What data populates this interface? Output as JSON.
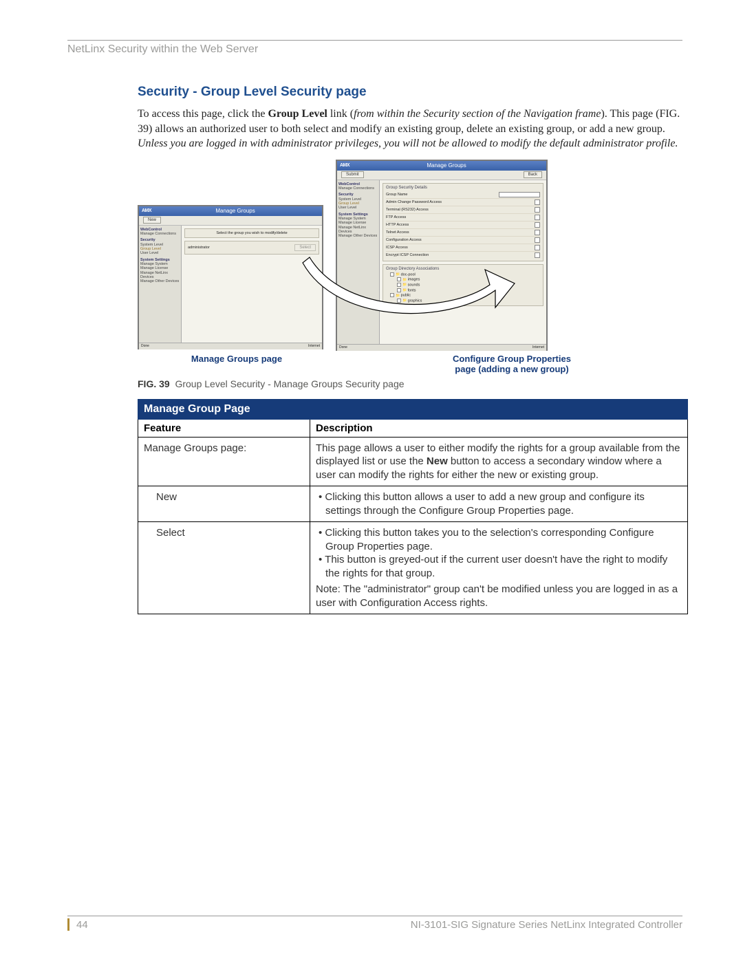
{
  "header": {
    "running": "NetLinx Security within the Web Server"
  },
  "section": {
    "title": "Security - Group Level Security page",
    "para": "To access this page, click the <b>Group Level</b> link (<i>from within the Security section of the Navigation frame</i>). This page (FIG. 39) allows an authorized user to both select and modify an existing group, delete an existing group, or add a new group. <i>Unless you are logged in with administrator privileges, you will not be allowed to modify the default administrator profile.</i>"
  },
  "figure": {
    "left_window_title": "Manage Groups",
    "right_window_title": "Manage Groups",
    "brand": "AMX",
    "new_btn": "New",
    "select_btn": "Select",
    "back_btn": "Back",
    "submit_btn": "Submit",
    "instr": "Select the group you wish to modify/delete",
    "list_item": "administrator",
    "nav": {
      "webcontrol": "WebControl",
      "webcontrol_sub": "Manage Connections",
      "security": "Security",
      "sec_items": [
        "System Level",
        "Group Level",
        "User Level"
      ],
      "system": "System Settings",
      "sys_items": [
        "Manage System",
        "Manage License",
        "Manage NetLinx Devices",
        "Manage Other Devices"
      ]
    },
    "panel1_title": "Group Security Details",
    "details": [
      {
        "lbl": "Group Name",
        "type": "input"
      },
      {
        "lbl": "Admin Change Password Access",
        "type": "cb"
      },
      {
        "lbl": "Terminal (RS232) Access",
        "type": "cb"
      },
      {
        "lbl": "FTP Access",
        "type": "cb"
      },
      {
        "lbl": "HTTP Access",
        "type": "cb"
      },
      {
        "lbl": "Telnet Access",
        "type": "cb"
      },
      {
        "lbl": "Configuration Access",
        "type": "cb"
      },
      {
        "lbl": "ICSP Access",
        "type": "cb"
      },
      {
        "lbl": "Encrypt ICSP Connection",
        "type": "cb"
      }
    ],
    "panel2_title": "Group Directory Associations",
    "dirs": [
      "doc-pool",
      "images",
      "sounds",
      "fonts",
      "public",
      "graphics"
    ],
    "caption_left": "Manage Groups page",
    "caption_right_l1": "Configure Group Properties",
    "caption_right_l2": "page (adding a new group)",
    "fig_label": "FIG. 39",
    "fig_text": "Group Level Security - Manage Groups Security page"
  },
  "table": {
    "title": "Manage Group Page",
    "col1": "Feature",
    "col2": "Description",
    "rows": [
      {
        "feature": "Manage Groups page:",
        "desc": "This page allows a user to either modify the rights for a group available from the displayed list or use the <b>New</b> button to access a secondary window where a user can modify the rights for either the new or existing group."
      },
      {
        "feature_indent": "New",
        "bullets": [
          "Clicking this button allows a user to add a new group and configure its settings through the Configure Group Properties page."
        ]
      },
      {
        "feature_indent": "Select",
        "bullets": [
          "Clicking this button takes you to the selection's corresponding Configure Group Properties page.",
          "This button is greyed-out if the current user doesn't have the right to modify the rights for that group."
        ],
        "note": "Note: The \"administrator\" group can't be modified unless you are logged in as a user with Configuration Access rights."
      }
    ]
  },
  "footer": {
    "page": "44",
    "doc": "NI-3101-SIG Signature Series NetLinx Integrated Controller"
  },
  "colors": {
    "heading_blue": "#1f4f8f",
    "table_header": "#163b79",
    "accent_gold": "#b08b34",
    "muted_text": "#9b9b99"
  }
}
